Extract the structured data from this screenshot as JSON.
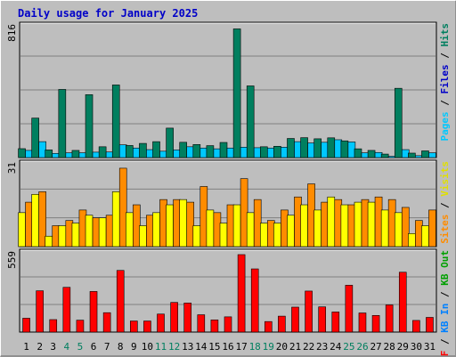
{
  "title": "Daily usage for January 2025",
  "colors": {
    "background": "#bebebe",
    "hits": "#007f5f",
    "files": "#00c8ff",
    "sites": "#ff8c00",
    "visits": "#ffff00",
    "kbytes": "#ff0000",
    "weekend_label": "#007f5f",
    "weekday_label": "#000000",
    "gridline": "#808080"
  },
  "chart_data": [
    {
      "type": "bar",
      "name": "hits-files",
      "categories": [
        "1",
        "2",
        "3",
        "4",
        "5",
        "6",
        "7",
        "8",
        "9",
        "10",
        "11",
        "12",
        "13",
        "14",
        "15",
        "16",
        "17",
        "18",
        "19",
        "20",
        "21",
        "22",
        "23",
        "24",
        "25",
        "26",
        "27",
        "28",
        "29",
        "30",
        "31"
      ],
      "weekend_days": [
        "4",
        "5",
        "11",
        "12",
        "18",
        "19",
        "25",
        "26"
      ],
      "ymax_label": "816",
      "ylim": [
        0,
        816
      ],
      "series": [
        {
          "name": "Hits",
          "values": [
            56,
            248,
            48,
            428,
            45,
            395,
            68,
            456,
            76,
            89,
            100,
            185,
            96,
            82,
            75,
            95,
            808,
            450,
            68,
            71,
            120,
            125,
            118,
            124,
            105,
            55,
            45,
            22,
            435,
            28,
            42
          ]
        },
        {
          "name": "Files",
          "values": [
            45,
            100,
            26,
            30,
            30,
            34,
            35,
            80,
            60,
            50,
            40,
            48,
            68,
            60,
            55,
            60,
            65,
            62,
            60,
            65,
            100,
            92,
            96,
            112,
            98,
            30,
            32,
            8,
            50,
            12,
            30
          ]
        }
      ]
    },
    {
      "type": "bar",
      "name": "visits-sites",
      "categories": [
        "1",
        "2",
        "3",
        "4",
        "5",
        "6",
        "7",
        "8",
        "9",
        "10",
        "11",
        "12",
        "13",
        "14",
        "15",
        "16",
        "17",
        "18",
        "19",
        "20",
        "21",
        "22",
        "23",
        "24",
        "25",
        "26",
        "27",
        "28",
        "29",
        "30",
        "31"
      ],
      "ymax_label": "31",
      "ylim": [
        0,
        31
      ],
      "series": [
        {
          "name": "Visits",
          "values": [
            13,
            20,
            4,
            8,
            9,
            12,
            11,
            21,
            13,
            8,
            13,
            16,
            18,
            8,
            14,
            9,
            16,
            13,
            9,
            9,
            12,
            16,
            14,
            19,
            16,
            17,
            17,
            14,
            13,
            5,
            8
          ]
        },
        {
          "name": "Sites",
          "values": [
            17,
            21,
            8,
            10,
            14,
            11,
            12,
            30,
            16,
            12,
            18,
            18,
            17,
            23,
            13,
            16,
            26,
            18,
            10,
            14,
            19,
            24,
            17,
            18,
            16,
            18,
            19,
            18,
            15,
            10,
            14
          ]
        }
      ]
    },
    {
      "type": "bar",
      "name": "kbytes",
      "categories": [
        "1",
        "2",
        "3",
        "4",
        "5",
        "6",
        "7",
        "8",
        "9",
        "10",
        "11",
        "12",
        "13",
        "14",
        "15",
        "16",
        "17",
        "18",
        "19",
        "20",
        "21",
        "22",
        "23",
        "24",
        "25",
        "26",
        "27",
        "28",
        "29",
        "30",
        "31"
      ],
      "ymax_label": "559",
      "ylim": [
        0,
        559
      ],
      "series": [
        {
          "name": "KB F",
          "values": [
            100,
            298,
            90,
            323,
            86,
            293,
            140,
            445,
            80,
            80,
            130,
            214,
            210,
            125,
            88,
            110,
            559,
            456,
            76,
            115,
            180,
            296,
            182,
            145,
            338,
            138,
            120,
            196,
            432,
            84,
            106
          ]
        }
      ]
    }
  ],
  "legend": {
    "hits_files": [
      {
        "text": "Pages",
        "color": "#00c8ff"
      },
      {
        "text": " / ",
        "color": "#000000"
      },
      {
        "text": "Files",
        "color": "#0000c8"
      },
      {
        "text": " / ",
        "color": "#000000"
      },
      {
        "text": "Hits",
        "color": "#007f5f"
      }
    ],
    "visits_sites": [
      {
        "text": "Sites",
        "color": "#ff8c00"
      },
      {
        "text": " / ",
        "color": "#000000"
      },
      {
        "text": "Visits",
        "color": "#e0e000"
      }
    ],
    "kbytes": [
      {
        "text": "KB F",
        "color": "#ff0000"
      },
      {
        "text": " / ",
        "color": "#000000"
      },
      {
        "text": "KB In",
        "color": "#0080ff"
      },
      {
        "text": " / ",
        "color": "#000000"
      },
      {
        "text": "KB Out",
        "color": "#00a000"
      }
    ]
  }
}
